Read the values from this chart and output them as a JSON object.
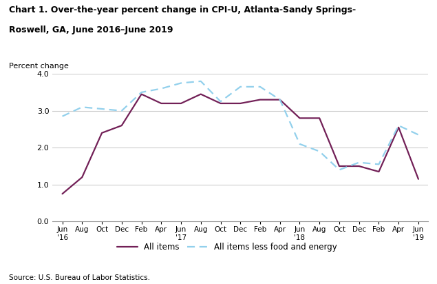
{
  "title_line1": "Chart 1. Over-the-year percent change in CPI-U, Atlanta-Sandy Springs-",
  "title_line2": "Roswell, GA, June 2016–June 2019",
  "ylabel": "Percent change",
  "source": "Source: U.S. Bureau of Labor Statistics.",
  "ylim": [
    0.0,
    4.0
  ],
  "yticks": [
    0.0,
    1.0,
    2.0,
    3.0,
    4.0
  ],
  "x_tick_labels": [
    "Jun\n'16",
    "Aug",
    "Oct",
    "Dec",
    "Feb",
    "Apr",
    "Jun\n'17",
    "Aug",
    "Oct",
    "Dec",
    "Feb",
    "Apr",
    "Jun\n'18",
    "Aug",
    "Oct",
    "Dec",
    "Feb",
    "Apr",
    "Jun\n'19"
  ],
  "all_items": [
    0.75,
    1.2,
    2.4,
    2.6,
    3.45,
    3.2,
    3.2,
    3.45,
    3.2,
    3.2,
    3.3,
    3.3,
    2.8,
    2.8,
    1.5,
    1.5,
    1.35,
    2.55,
    1.15
  ],
  "all_items_less": [
    2.85,
    3.1,
    3.05,
    3.0,
    3.5,
    3.6,
    3.75,
    3.8,
    3.25,
    3.65,
    3.65,
    3.3,
    2.1,
    1.9,
    1.4,
    1.6,
    1.55,
    2.6,
    2.35
  ],
  "all_items_color": "#722057",
  "all_items_less_color": "#92d0ec",
  "background_color": "#ffffff",
  "grid_color": "#cccccc",
  "legend_all_items": "All items",
  "legend_all_items_less": "All items less food and energy"
}
